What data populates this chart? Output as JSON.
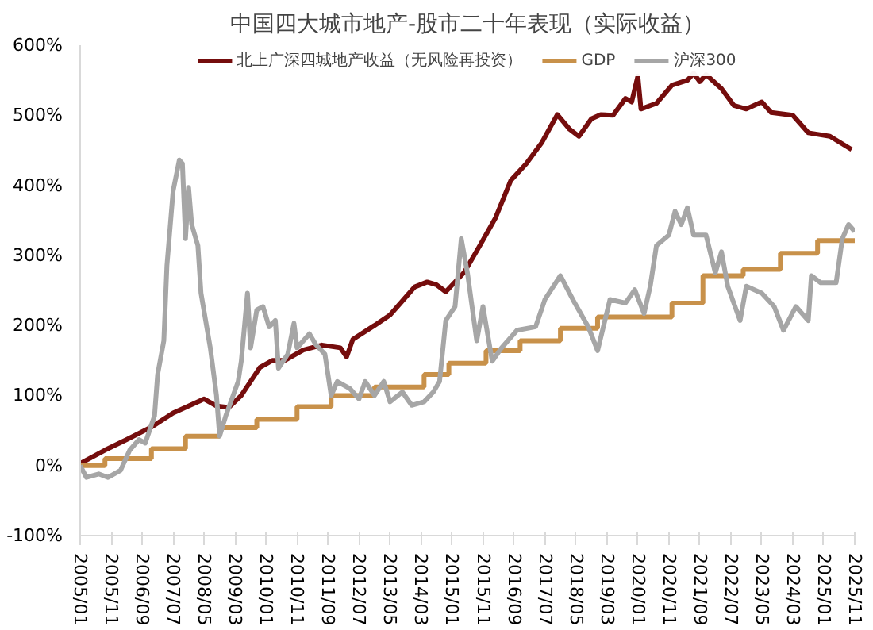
{
  "chart_data": {
    "type": "line",
    "title": "中国四大城市地产-股市二十年表现（实际收益）",
    "ylim": [
      -100,
      600
    ],
    "yticks": [
      {
        "value": -100,
        "label": "-100%"
      },
      {
        "value": 0,
        "label": "0%"
      },
      {
        "value": 100,
        "label": "100%"
      },
      {
        "value": 200,
        "label": "200%"
      },
      {
        "value": 300,
        "label": "300%"
      },
      {
        "value": 400,
        "label": "400%"
      },
      {
        "value": 500,
        "label": "500%"
      },
      {
        "value": 600,
        "label": "600%"
      }
    ],
    "xlim": [
      "2005-01",
      "2025-11"
    ],
    "xticks": [
      {
        "value": "2005-01",
        "label": "2005/01"
      },
      {
        "value": "2005-11",
        "label": "2005/11"
      },
      {
        "value": "2006-09",
        "label": "2006/09"
      },
      {
        "value": "2007-07",
        "label": "2007/07"
      },
      {
        "value": "2008-05",
        "label": "2008/05"
      },
      {
        "value": "2009-03",
        "label": "2009/03"
      },
      {
        "value": "2010-01",
        "label": "2010/01"
      },
      {
        "value": "2010-11",
        "label": "2010/11"
      },
      {
        "value": "2011-09",
        "label": "2011/09"
      },
      {
        "value": "2012-07",
        "label": "2012/07"
      },
      {
        "value": "2013-05",
        "label": "2013/05"
      },
      {
        "value": "2014-03",
        "label": "2014/03"
      },
      {
        "value": "2015-01",
        "label": "2015/01"
      },
      {
        "value": "2015-11",
        "label": "2015/11"
      },
      {
        "value": "2016-09",
        "label": "2016/09"
      },
      {
        "value": "2017-07",
        "label": "2017/07"
      },
      {
        "value": "2018-05",
        "label": "2018/05"
      },
      {
        "value": "2019-03",
        "label": "2019/03"
      },
      {
        "value": "2020-01",
        "label": "2020/01"
      },
      {
        "value": "2020-11",
        "label": "2020/11"
      },
      {
        "value": "2021-09",
        "label": "2021/09"
      },
      {
        "value": "2022-07",
        "label": "2022/07"
      },
      {
        "value": "2023-05",
        "label": "2023/05"
      },
      {
        "value": "2024-03",
        "label": "2024/03"
      },
      {
        "value": "2025-01",
        "label": "2025/01"
      },
      {
        "value": "2025-11",
        "label": "2025/11"
      }
    ],
    "grid": false,
    "legend": "top",
    "line_style": "solid",
    "marker": "none",
    "series": [
      {
        "name": "北上广深四城地产收益（无风险再投资）",
        "color": "#750d0d",
        "x": [
          "2005-01",
          "2005-09",
          "2006-04",
          "2006-12",
          "2007-07",
          "2008-05",
          "2008-09",
          "2009-01",
          "2009-05",
          "2009-11",
          "2010-03",
          "2010-07",
          "2011-01",
          "2011-07",
          "2012-01",
          "2012-03",
          "2012-05",
          "2012-12",
          "2013-05",
          "2014-01",
          "2014-05",
          "2014-08",
          "2014-11",
          "2015-05",
          "2015-10",
          "2016-03",
          "2016-08",
          "2017-01",
          "2017-06",
          "2017-11",
          "2018-03",
          "2018-06",
          "2018-10",
          "2019-01",
          "2019-05",
          "2019-09",
          "2019-11",
          "2020-01",
          "2020-02",
          "2020-07",
          "2020-12",
          "2021-05",
          "2021-07",
          "2021-09",
          "2021-11",
          "2022-04",
          "2022-08",
          "2022-12",
          "2023-05",
          "2023-08",
          "2024-03",
          "2024-08",
          "2025-03",
          "2025-10"
        ],
        "values": [
          3,
          22,
          37,
          55,
          75,
          95,
          85,
          83,
          100,
          140,
          150,
          150,
          165,
          172,
          168,
          155,
          180,
          200,
          215,
          255,
          262,
          258,
          248,
          276,
          314,
          353,
          407,
          431,
          461,
          501,
          480,
          470,
          495,
          501,
          500,
          524,
          519,
          556,
          509,
          517,
          543,
          550,
          560,
          548,
          558,
          538,
          514,
          509,
          519,
          504,
          500,
          475,
          470,
          451
        ]
      },
      {
        "name": "GDP",
        "color": "#c8914a",
        "type": "step",
        "x": [
          "2005-01",
          "2005-09",
          "2006-12",
          "2007-11",
          "2008-10",
          "2009-10",
          "2010-11",
          "2011-10",
          "2012-12",
          "2014-04",
          "2014-12",
          "2015-12",
          "2016-11",
          "2017-12",
          "2018-12",
          "2020-12",
          "2021-10",
          "2022-11",
          "2023-11",
          "2024-11",
          "2025-11"
        ],
        "values": [
          0,
          10,
          24,
          42,
          54,
          66,
          84,
          100,
          112,
          130,
          146,
          164,
          178,
          196,
          212,
          232,
          271,
          280,
          303,
          321,
          321
        ]
      },
      {
        "name": "沪深300",
        "color": "#a6a6a6",
        "x": [
          "2005-01",
          "2005-03",
          "2005-07",
          "2005-10",
          "2006-02",
          "2006-05",
          "2006-08",
          "2006-10",
          "2007-01",
          "2007-02",
          "2007-04",
          "2007-05",
          "2007-07",
          "2007-09",
          "2007-10",
          "2007-11",
          "2007-12",
          "2008-01",
          "2008-03",
          "2008-04",
          "2008-07",
          "2008-09",
          "2008-10",
          "2008-12",
          "2009-04",
          "2009-05",
          "2009-07",
          "2009-08",
          "2009-10",
          "2009-12",
          "2010-02",
          "2010-04",
          "2010-05",
          "2010-08",
          "2010-10",
          "2010-11",
          "2011-03",
          "2011-05",
          "2011-08",
          "2011-10",
          "2011-12",
          "2012-04",
          "2012-07",
          "2012-09",
          "2012-12",
          "2013-03",
          "2013-05",
          "2013-09",
          "2013-12",
          "2014-04",
          "2014-07",
          "2014-09",
          "2014-11",
          "2015-02",
          "2015-04",
          "2015-06",
          "2015-09",
          "2015-11",
          "2016-02",
          "2016-05",
          "2016-10",
          "2017-04",
          "2017-07",
          "2017-12",
          "2018-04",
          "2018-09",
          "2018-12",
          "2019-04",
          "2019-09",
          "2019-12",
          "2020-03",
          "2020-05",
          "2020-07",
          "2020-11",
          "2021-01",
          "2021-03",
          "2021-05",
          "2021-07",
          "2021-11",
          "2022-02",
          "2022-04",
          "2022-06",
          "2022-10",
          "2022-12",
          "2023-05",
          "2023-09",
          "2023-12",
          "2024-04",
          "2024-08",
          "2024-09",
          "2024-12",
          "2025-05",
          "2025-07",
          "2025-09",
          "2025-11"
        ],
        "values": [
          0,
          -17,
          -12,
          -17,
          -7,
          22,
          37,
          32,
          71,
          130,
          178,
          285,
          392,
          436,
          431,
          324,
          397,
          344,
          314,
          246,
          168,
          100,
          42,
          71,
          120,
          149,
          246,
          168,
          222,
          227,
          198,
          207,
          139,
          159,
          203,
          168,
          188,
          173,
          159,
          100,
          120,
          110,
          95,
          120,
          100,
          120,
          91,
          105,
          86,
          91,
          105,
          120,
          207,
          227,
          324,
          275,
          178,
          227,
          149,
          168,
          193,
          198,
          237,
          271,
          237,
          198,
          164,
          237,
          232,
          251,
          217,
          256,
          314,
          329,
          363,
          344,
          368,
          329,
          329,
          275,
          305,
          256,
          207,
          256,
          246,
          227,
          193,
          227,
          207,
          271,
          261,
          261,
          324,
          344,
          334
        ]
      }
    ]
  }
}
